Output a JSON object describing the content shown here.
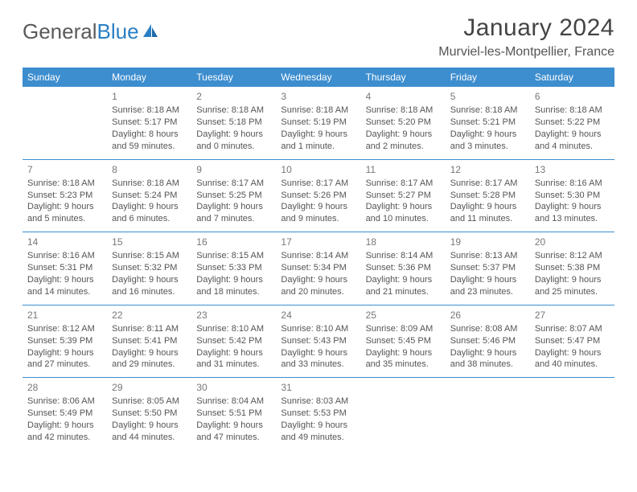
{
  "logo": {
    "part1": "General",
    "part2": "Blue"
  },
  "title": "January 2024",
  "location": "Murviel-les-Montpellier, France",
  "colors": {
    "header_bg": "#3d8ecf",
    "header_text": "#ffffff",
    "border": "#3d8ecf",
    "body_text": "#555555",
    "daynum": "#777777",
    "logo_gray": "#5a5a5a",
    "logo_blue": "#2a7fc4",
    "page_bg": "#ffffff"
  },
  "typography": {
    "title_fontsize": 30,
    "location_fontsize": 16,
    "header_fontsize": 12,
    "cell_fontsize": 11
  },
  "weekdays": [
    "Sunday",
    "Monday",
    "Tuesday",
    "Wednesday",
    "Thursday",
    "Friday",
    "Saturday"
  ],
  "weeks": [
    [
      null,
      {
        "num": "1",
        "l1": "Sunrise: 8:18 AM",
        "l2": "Sunset: 5:17 PM",
        "l3": "Daylight: 8 hours",
        "l4": "and 59 minutes."
      },
      {
        "num": "2",
        "l1": "Sunrise: 8:18 AM",
        "l2": "Sunset: 5:18 PM",
        "l3": "Daylight: 9 hours",
        "l4": "and 0 minutes."
      },
      {
        "num": "3",
        "l1": "Sunrise: 8:18 AM",
        "l2": "Sunset: 5:19 PM",
        "l3": "Daylight: 9 hours",
        "l4": "and 1 minute."
      },
      {
        "num": "4",
        "l1": "Sunrise: 8:18 AM",
        "l2": "Sunset: 5:20 PM",
        "l3": "Daylight: 9 hours",
        "l4": "and 2 minutes."
      },
      {
        "num": "5",
        "l1": "Sunrise: 8:18 AM",
        "l2": "Sunset: 5:21 PM",
        "l3": "Daylight: 9 hours",
        "l4": "and 3 minutes."
      },
      {
        "num": "6",
        "l1": "Sunrise: 8:18 AM",
        "l2": "Sunset: 5:22 PM",
        "l3": "Daylight: 9 hours",
        "l4": "and 4 minutes."
      }
    ],
    [
      {
        "num": "7",
        "l1": "Sunrise: 8:18 AM",
        "l2": "Sunset: 5:23 PM",
        "l3": "Daylight: 9 hours",
        "l4": "and 5 minutes."
      },
      {
        "num": "8",
        "l1": "Sunrise: 8:18 AM",
        "l2": "Sunset: 5:24 PM",
        "l3": "Daylight: 9 hours",
        "l4": "and 6 minutes."
      },
      {
        "num": "9",
        "l1": "Sunrise: 8:17 AM",
        "l2": "Sunset: 5:25 PM",
        "l3": "Daylight: 9 hours",
        "l4": "and 7 minutes."
      },
      {
        "num": "10",
        "l1": "Sunrise: 8:17 AM",
        "l2": "Sunset: 5:26 PM",
        "l3": "Daylight: 9 hours",
        "l4": "and 9 minutes."
      },
      {
        "num": "11",
        "l1": "Sunrise: 8:17 AM",
        "l2": "Sunset: 5:27 PM",
        "l3": "Daylight: 9 hours",
        "l4": "and 10 minutes."
      },
      {
        "num": "12",
        "l1": "Sunrise: 8:17 AM",
        "l2": "Sunset: 5:28 PM",
        "l3": "Daylight: 9 hours",
        "l4": "and 11 minutes."
      },
      {
        "num": "13",
        "l1": "Sunrise: 8:16 AM",
        "l2": "Sunset: 5:30 PM",
        "l3": "Daylight: 9 hours",
        "l4": "and 13 minutes."
      }
    ],
    [
      {
        "num": "14",
        "l1": "Sunrise: 8:16 AM",
        "l2": "Sunset: 5:31 PM",
        "l3": "Daylight: 9 hours",
        "l4": "and 14 minutes."
      },
      {
        "num": "15",
        "l1": "Sunrise: 8:15 AM",
        "l2": "Sunset: 5:32 PM",
        "l3": "Daylight: 9 hours",
        "l4": "and 16 minutes."
      },
      {
        "num": "16",
        "l1": "Sunrise: 8:15 AM",
        "l2": "Sunset: 5:33 PM",
        "l3": "Daylight: 9 hours",
        "l4": "and 18 minutes."
      },
      {
        "num": "17",
        "l1": "Sunrise: 8:14 AM",
        "l2": "Sunset: 5:34 PM",
        "l3": "Daylight: 9 hours",
        "l4": "and 20 minutes."
      },
      {
        "num": "18",
        "l1": "Sunrise: 8:14 AM",
        "l2": "Sunset: 5:36 PM",
        "l3": "Daylight: 9 hours",
        "l4": "and 21 minutes."
      },
      {
        "num": "19",
        "l1": "Sunrise: 8:13 AM",
        "l2": "Sunset: 5:37 PM",
        "l3": "Daylight: 9 hours",
        "l4": "and 23 minutes."
      },
      {
        "num": "20",
        "l1": "Sunrise: 8:12 AM",
        "l2": "Sunset: 5:38 PM",
        "l3": "Daylight: 9 hours",
        "l4": "and 25 minutes."
      }
    ],
    [
      {
        "num": "21",
        "l1": "Sunrise: 8:12 AM",
        "l2": "Sunset: 5:39 PM",
        "l3": "Daylight: 9 hours",
        "l4": "and 27 minutes."
      },
      {
        "num": "22",
        "l1": "Sunrise: 8:11 AM",
        "l2": "Sunset: 5:41 PM",
        "l3": "Daylight: 9 hours",
        "l4": "and 29 minutes."
      },
      {
        "num": "23",
        "l1": "Sunrise: 8:10 AM",
        "l2": "Sunset: 5:42 PM",
        "l3": "Daylight: 9 hours",
        "l4": "and 31 minutes."
      },
      {
        "num": "24",
        "l1": "Sunrise: 8:10 AM",
        "l2": "Sunset: 5:43 PM",
        "l3": "Daylight: 9 hours",
        "l4": "and 33 minutes."
      },
      {
        "num": "25",
        "l1": "Sunrise: 8:09 AM",
        "l2": "Sunset: 5:45 PM",
        "l3": "Daylight: 9 hours",
        "l4": "and 35 minutes."
      },
      {
        "num": "26",
        "l1": "Sunrise: 8:08 AM",
        "l2": "Sunset: 5:46 PM",
        "l3": "Daylight: 9 hours",
        "l4": "and 38 minutes."
      },
      {
        "num": "27",
        "l1": "Sunrise: 8:07 AM",
        "l2": "Sunset: 5:47 PM",
        "l3": "Daylight: 9 hours",
        "l4": "and 40 minutes."
      }
    ],
    [
      {
        "num": "28",
        "l1": "Sunrise: 8:06 AM",
        "l2": "Sunset: 5:49 PM",
        "l3": "Daylight: 9 hours",
        "l4": "and 42 minutes."
      },
      {
        "num": "29",
        "l1": "Sunrise: 8:05 AM",
        "l2": "Sunset: 5:50 PM",
        "l3": "Daylight: 9 hours",
        "l4": "and 44 minutes."
      },
      {
        "num": "30",
        "l1": "Sunrise: 8:04 AM",
        "l2": "Sunset: 5:51 PM",
        "l3": "Daylight: 9 hours",
        "l4": "and 47 minutes."
      },
      {
        "num": "31",
        "l1": "Sunrise: 8:03 AM",
        "l2": "Sunset: 5:53 PM",
        "l3": "Daylight: 9 hours",
        "l4": "and 49 minutes."
      },
      null,
      null,
      null
    ]
  ]
}
